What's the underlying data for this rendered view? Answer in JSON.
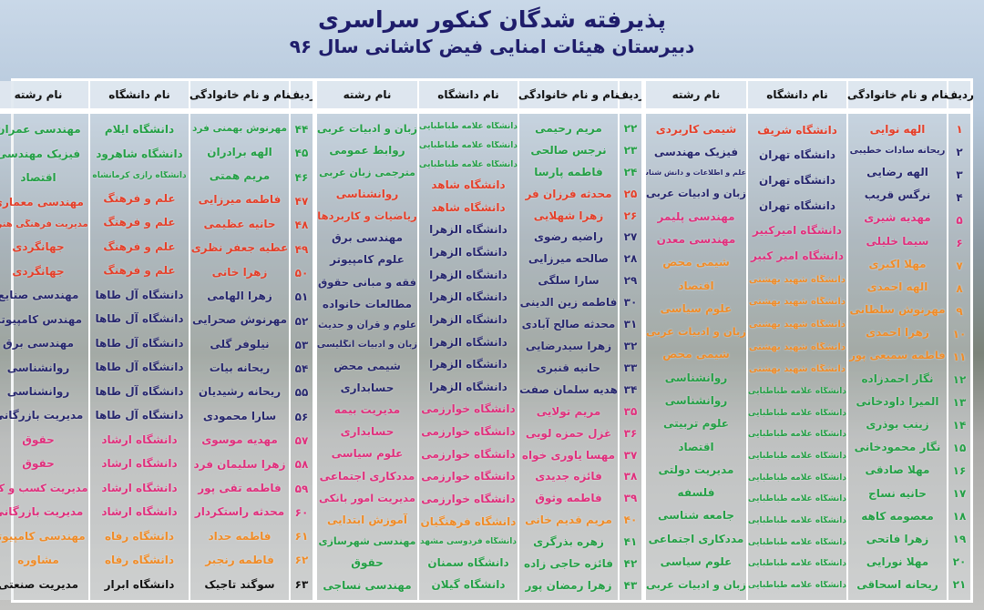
{
  "header": {
    "title": "پذیرفته شدگان کنکور سراسری",
    "subtitle": "دبیرستان هیئات امنایی فیض کاشانی سال ۹۶"
  },
  "columns": {
    "num": "ردیف",
    "name": "نام و نام خانوادگی",
    "uni": "نام دانشگاه",
    "major": "نام رشته"
  },
  "colors": {
    "red": "#e5402a",
    "navy": "#27276e",
    "pink": "#e0307d",
    "orange": "#f08c28",
    "green": "#24a046",
    "black": "#111111"
  },
  "groups": [
    {
      "rows": [
        [
          "۱",
          "الهه نوایی",
          "دانشگاه شریف",
          "شیمی کاربردی",
          "red"
        ],
        [
          "۲",
          "ریحانه سادات خطیبی",
          "دانشگاه تهران",
          "فیزیک مهندسی",
          "navy"
        ],
        [
          "۳",
          "الهه رضایی",
          "دانشگاه تهران",
          "علم و اطلاعات و دانش شناسی",
          "navy"
        ],
        [
          "۴",
          "نرگس قریب",
          "دانشگاه تهران",
          "زبان و ادبیات عربی",
          "navy"
        ],
        [
          "۵",
          "مهدیه شیری",
          "دانشگاه امیرکبیر",
          "مهندسی پلیمر",
          "pink"
        ],
        [
          "۶",
          "سیما خلیلی",
          "دانشگاه امیر کبیر",
          "مهندسی معدن",
          "pink"
        ],
        [
          "۷",
          "مهلا اکبری",
          "دانشگاه شهید بهشتی",
          "شیمی محض",
          "orange"
        ],
        [
          "۸",
          "الهه احمدی",
          "دانشگاه شهید بهشتی",
          "اقتصاد",
          "orange"
        ],
        [
          "۹",
          "مهرنوش سلطانی",
          "دانشگاه شهید بهشتی",
          "علوم سیاسی",
          "orange"
        ],
        [
          "۱۰",
          "زهرا احمدی",
          "دانشگاه شهید بهشتی",
          "زبان و ادبیات عربی",
          "orange"
        ],
        [
          "۱۱",
          "فاطمه سمیعی پور",
          "دانشگاه شهید بهشتی",
          "شیمی محض",
          "orange"
        ],
        [
          "۱۲",
          "نگار احمدزاده",
          "دانشگاه علامه طباطبایی",
          "روانشناسی",
          "green"
        ],
        [
          "۱۳",
          "المیرا داودخانی",
          "دانشگاه علامه طباطبایی",
          "روانشناسی",
          "green"
        ],
        [
          "۱۴",
          "زینب بوذری",
          "دانشگاه علامه طباطبایی",
          "علوم تربیتی",
          "green"
        ],
        [
          "۱۵",
          "نگار محمودخانی",
          "دانشگاه علامه طباطبایی",
          "اقتصاد",
          "green"
        ],
        [
          "۱۶",
          "مهلا صادقی",
          "دانشگاه علامه طباطبایی",
          "مدیریت دولتی",
          "green"
        ],
        [
          "۱۷",
          "حانیه نساج",
          "دانشگاه علامه طباطبایی",
          "فلسفه",
          "green"
        ],
        [
          "۱۸",
          "معصومه کاهه",
          "دانشگاه علامه طباطبایی",
          "جامعه شناسی",
          "green"
        ],
        [
          "۱۹",
          "زهرا فاتحی",
          "دانشگاه علامه طباطبایی",
          "مددکاری اجتماعی",
          "green"
        ],
        [
          "۲۰",
          "مهلا نورایی",
          "دانشگاه علامه طباطبایی",
          "علوم سیاسی",
          "green"
        ],
        [
          "۲۱",
          "ریحانه اسحاقی",
          "دانشگاه علامه طباطبایی",
          "زبان و ادبیات عربی",
          "green"
        ]
      ]
    },
    {
      "rows": [
        [
          "۲۲",
          "مریم رحیمی",
          "دانشگاه علامه طباطبایی",
          "زبان و ادبیات عربی",
          "green"
        ],
        [
          "۲۳",
          "نرجس صالحی",
          "دانشگاه علامه طباطبایی",
          "روابط عمومی",
          "green"
        ],
        [
          "۲۴",
          "فاطمه پارسا",
          "دانشگاه علامه طباطبایی",
          "مترجمی زبان عربی",
          "green"
        ],
        [
          "۲۵",
          "محدثه فرزان فر",
          "دانشگاه شاهد",
          "روانشناسی",
          "red"
        ],
        [
          "۲۶",
          "زهرا شهلایی",
          "دانشگاه شاهد",
          "ریاضیات و کاربردها",
          "red"
        ],
        [
          "۲۷",
          "راضیه رضوی",
          "دانشگاه الزهرا",
          "مهندسی برق",
          "navy"
        ],
        [
          "۲۸",
          "صالحه میرزایی",
          "دانشگاه الزهرا",
          "علوم کامپیوتر",
          "navy"
        ],
        [
          "۲۹",
          "سارا سلگی",
          "دانشگاه الزهرا",
          "فقه و مبانی حقوق",
          "navy"
        ],
        [
          "۳۰",
          "فاطمه زین الدینی",
          "دانشگاه الزهرا",
          "مطالعات خانواده",
          "navy"
        ],
        [
          "۳۱",
          "محدثه صالح آبادی",
          "دانشگاه الزهرا",
          "علوم و قرآن و حدیث",
          "navy"
        ],
        [
          "۳۲",
          "زهرا سیدرضایی",
          "دانشگاه الزهرا",
          "زبان و ادبیات انگلیسی",
          "navy"
        ],
        [
          "۳۳",
          "حانیه قنبری",
          "دانشگاه الزهرا",
          "شیمی محض",
          "navy"
        ],
        [
          "۳۴",
          "هدیه سلمان صفت",
          "دانشگاه الزهرا",
          "حسابداری",
          "navy"
        ],
        [
          "۳۵",
          "مریم تولایی",
          "دانشگاه خوارزمی",
          "مدیریت بیمه",
          "pink"
        ],
        [
          "۳۶",
          "غزل حمزه لویی",
          "دانشگاه خوارزمی",
          "حسابداری",
          "pink"
        ],
        [
          "۳۷",
          "مهسا یاوری خواه",
          "دانشگاه خوارزمی",
          "علوم سیاسی",
          "pink"
        ],
        [
          "۳۸",
          "فائزه جدیدی",
          "دانشگاه خوارزمی",
          "مددکاری اجتماعی",
          "pink"
        ],
        [
          "۳۹",
          "فاطمه وثوق",
          "دانشگاه خوارزمی",
          "مدیریت امور بانکی",
          "pink"
        ],
        [
          "۴۰",
          "مریم قدیم خانی",
          "دانشگاه فرهنگیان",
          "آموزش ابتدایی",
          "orange"
        ],
        [
          "۴۱",
          "زهره بذرگری",
          "دانشگاه فردوسی مشهد",
          "مهندسی شهرسازی",
          "green"
        ],
        [
          "۴۲",
          "فائزه حاجی زاده",
          "دانشگاه سمنان",
          "حقوق",
          "green"
        ],
        [
          "۴۳",
          "زهرا رمضان پور",
          "دانشگاه گیلان",
          "مهندسی نساجی",
          "green"
        ]
      ]
    },
    {
      "rows": [
        [
          "۴۴",
          "مهرنوش بهمنی فرد",
          "دانشگاه ایلام",
          "مهندسی عمران",
          "green"
        ],
        [
          "۴۵",
          "الهه برادران",
          "دانشگاه شاهرود",
          "فیزیک مهندسی",
          "green"
        ],
        [
          "۴۶",
          "مریم همتی",
          "دانشگاه رازی کرمانشاه",
          "اقتصاد",
          "green"
        ],
        [
          "۴۷",
          "فاطمه میرزایی",
          "علم و فرهنگ",
          "مهندسی معماری",
          "red"
        ],
        [
          "۴۸",
          "حانیه عظیمی",
          "علم و فرهنگ",
          "مدیریت فرهنگی هنری",
          "red"
        ],
        [
          "۴۹",
          "عطیه جعفر نظری",
          "علم و فرهنگ",
          "جهانگردی",
          "red"
        ],
        [
          "۵۰",
          "زهرا خانی",
          "علم و فرهنگ",
          "جهانگردی",
          "red"
        ],
        [
          "۵۱",
          "زهرا الهامی",
          "دانشگاه آل طاها",
          "مهندسی صنایع",
          "navy"
        ],
        [
          "۵۲",
          "مهرنوش صحرایی",
          "دانشگاه آل طاها",
          "مهندس کامپیوتر",
          "navy"
        ],
        [
          "۵۳",
          "نیلوفر گلی",
          "دانشگاه آل طاها",
          "مهندسی برق",
          "navy"
        ],
        [
          "۵۴",
          "ریحانه بیات",
          "دانشگاه آل طاها",
          "روانشناسی",
          "navy"
        ],
        [
          "۵۵",
          "ریحانه رشیدیان",
          "دانشگاه آل طاها",
          "روانشناسی",
          "navy"
        ],
        [
          "۵۶",
          "سارا محمودی",
          "دانشگاه آل طاها",
          "مدیریت بازرگانی",
          "navy"
        ],
        [
          "۵۷",
          "مهدیه موسوی",
          "دانشگاه ارشاد",
          "حقوق",
          "pink"
        ],
        [
          "۵۸",
          "زهرا سلیمان فرد",
          "دانشگاه ارشاد",
          "حقوق",
          "pink"
        ],
        [
          "۵۹",
          "فاطمه تقی پور",
          "دانشگاه ارشاد",
          "مدیریت کسب و کار",
          "pink"
        ],
        [
          "۶۰",
          "محدثه راستکردار",
          "دانشگاه ارشاد",
          "مدیریت بازرگانی",
          "pink"
        ],
        [
          "۶۱",
          "فاطمه حداد",
          "دانشگاه رفاه",
          "مهندسی کامپیوتر",
          "orange"
        ],
        [
          "۶۲",
          "فاطمه رنجبر",
          "دانشگاه رفاه",
          "مشاوره",
          "orange"
        ],
        [
          "۶۳",
          "سوگند تاجیک",
          "دانشگاه ابرار",
          "مدیریت صنعتی",
          "black"
        ]
      ]
    }
  ]
}
